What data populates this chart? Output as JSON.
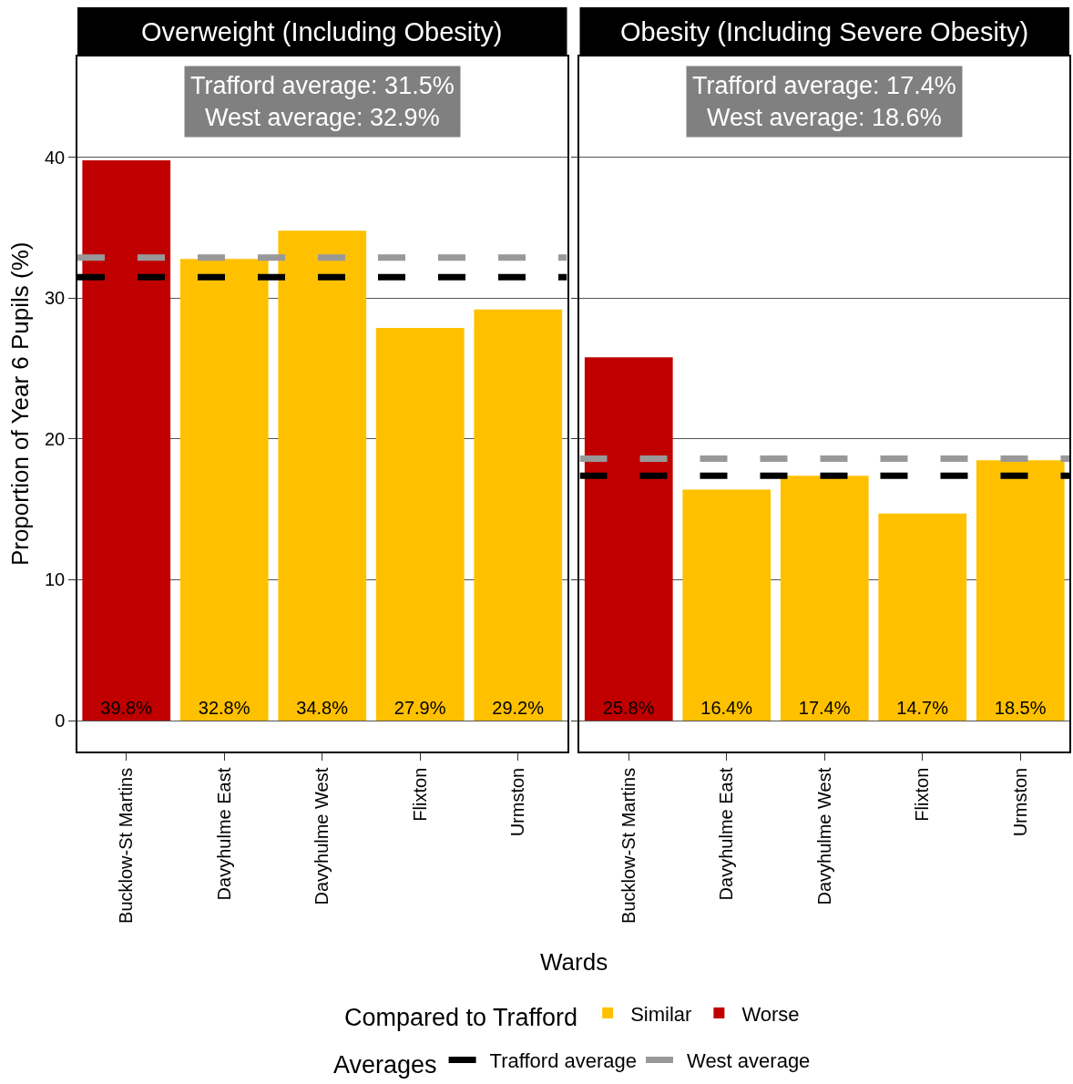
{
  "chart_data": [
    {
      "type": "bar",
      "title": "Overweight (Including Obesity)",
      "ylabel": "Proportion of Year 6 Pupils (%)",
      "xlabel": "Wards",
      "legend_title": "Compared to Trafford",
      "legend": "bottom",
      "categories": [
        "Bucklow-St Martins",
        "Davyhulme East",
        "Davyhulme West",
        "Flixton",
        "Urmston"
      ],
      "series": [
        {
          "name": "Similar",
          "color": "#ffc000",
          "values": [
            null,
            32.8,
            34.8,
            27.9,
            29.2
          ],
          "value_labels": [
            null,
            "32.8%",
            "34.8%",
            "27.9%",
            "29.2%"
          ]
        },
        {
          "name": "Worse",
          "color": "#c00000",
          "values": [
            39.8,
            null,
            null,
            null,
            null
          ],
          "value_labels": [
            "39.8%",
            null,
            null,
            null,
            null
          ]
        }
      ],
      "ref_lines": [
        {
          "axis": "y",
          "value": 31.5,
          "label": "Trafford average",
          "color": "#000000",
          "line_style": "dashed"
        },
        {
          "axis": "y",
          "value": 32.9,
          "label": "West average",
          "color": "#999999",
          "line_style": "dashed"
        }
      ],
      "annotations": [
        "Trafford average: 31.5%\nWest average: 32.9%"
      ],
      "ylim": [
        -2.2,
        47.2
      ],
      "yticks": [
        0,
        10,
        20,
        30,
        40
      ],
      "grid": "y"
    },
    {
      "type": "bar",
      "title": "Obesity (Including Severe Obesity)",
      "legend_title": "Averages",
      "legend": "bottom",
      "categories": [
        "Bucklow-St Martins",
        "Davyhulme East",
        "Davyhulme West",
        "Flixton",
        "Urmston"
      ],
      "series": [
        {
          "color": "#ffc000",
          "values": [
            null,
            16.4,
            17.4,
            14.7,
            18.5
          ],
          "value_labels": [
            null,
            "16.4%",
            "17.4%",
            "14.7%",
            "18.5%"
          ]
        },
        {
          "color": "#c00000",
          "values": [
            25.8,
            null,
            null,
            null,
            null
          ],
          "value_labels": [
            "25.8%",
            null,
            null,
            null,
            null
          ]
        }
      ],
      "ref_lines": [
        {
          "axis": "y",
          "value": 17.4,
          "color": "#000000",
          "line_style": "dashed"
        },
        {
          "axis": "y",
          "value": 18.6,
          "color": "#999999",
          "line_style": "dashed"
        }
      ],
      "annotations": [
        "Trafford average: 17.4%\nWest average: 18.6%"
      ],
      "ylim": [
        -2.2,
        47.2
      ],
      "yticks": [
        0,
        10,
        20,
        30,
        40
      ],
      "grid": "y",
      "tick_labels": "x"
    }
  ]
}
